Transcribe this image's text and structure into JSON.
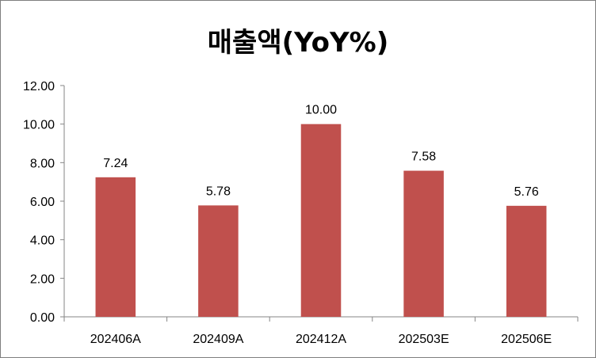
{
  "chart_data": {
    "type": "bar",
    "title": "매출액(YoY%)",
    "categories": [
      "202406A",
      "202409A",
      "202412A",
      "202503E",
      "202506E"
    ],
    "values": [
      7.24,
      5.78,
      10.0,
      7.58,
      5.76
    ],
    "data_labels": [
      "7.24",
      "5.78",
      "10.00",
      "7.58",
      "5.76"
    ],
    "yticks": [
      "0.00",
      "2.00",
      "4.00",
      "6.00",
      "8.00",
      "10.00",
      "12.00"
    ],
    "ylim": [
      0,
      12
    ],
    "grid": false,
    "legend": "none",
    "bar_color": "#c0504d"
  }
}
